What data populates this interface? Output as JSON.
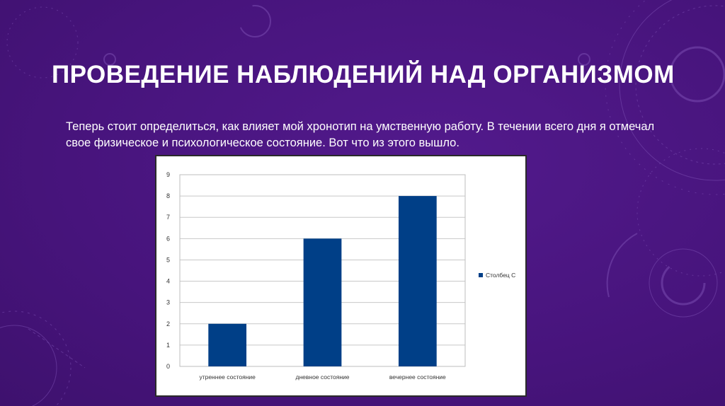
{
  "slide": {
    "title": "ПРОВЕДЕНИЕ НАБЛЮДЕНИЙ НАД ОРГАНИЗМОМ",
    "body": "Теперь стоит определиться, как влияет мой хронотип на умственную работу. В течении всего дня я отмечал свое физическое и психологическое состояние. Вот что из этого вышло."
  },
  "colors": {
    "background": "#4a1680",
    "bar": "#003f87",
    "text": "#ffffff"
  },
  "chart_data": {
    "type": "bar",
    "categories": [
      "утреннее  состояние",
      "дневное  состояние",
      "вечернее  состояние"
    ],
    "series": [
      {
        "name": "Столбец С",
        "values": [
          2,
          6,
          8
        ]
      }
    ],
    "ylim": [
      0,
      9
    ],
    "yticks": [
      "0",
      "1",
      "2",
      "3",
      "4",
      "5",
      "6",
      "7",
      "8",
      "9"
    ],
    "grid": true,
    "legend_position": "right"
  }
}
